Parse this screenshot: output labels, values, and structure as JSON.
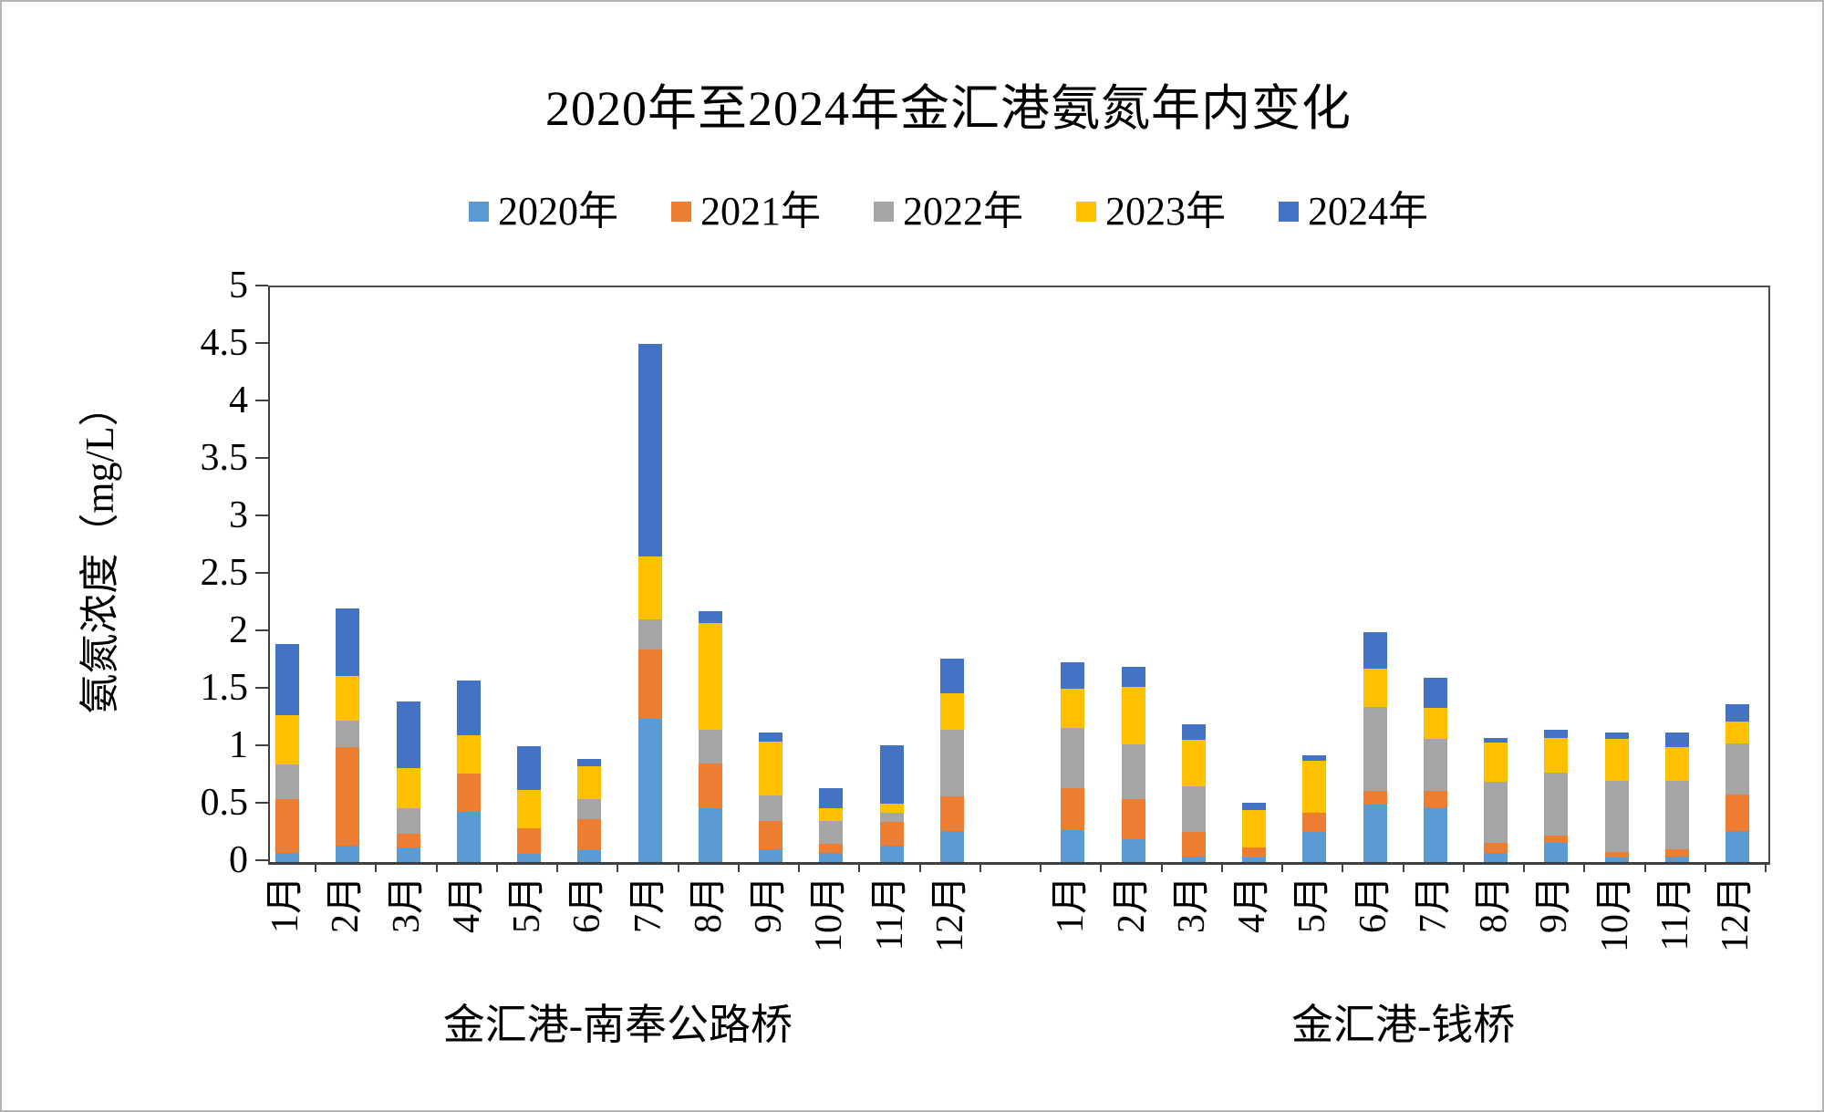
{
  "title": "2020年至2024年金汇港氨氮年内变化",
  "legend": [
    {
      "label": "2020年",
      "color": "#5B9BD5"
    },
    {
      "label": "2021年",
      "color": "#ED7D31"
    },
    {
      "label": "2022年",
      "color": "#A5A5A5"
    },
    {
      "label": "2023年",
      "color": "#FFC000"
    },
    {
      "label": "2024年",
      "color": "#4472C4"
    }
  ],
  "y_axis": {
    "title": "氨氮浓度（mg/L）",
    "min": 0,
    "max": 5,
    "step": 0.5,
    "tick_labels": [
      "0",
      "0.5",
      "1",
      "1.5",
      "2",
      "2.5",
      "3",
      "3.5",
      "4",
      "4.5",
      "5"
    ]
  },
  "chart_data": {
    "type": "bar",
    "stacked": true,
    "title": "2020年至2024年金汇港氨氮年内变化",
    "ylabel": "氨氮浓度（mg/L）",
    "ylim": [
      0,
      5
    ],
    "grid": false,
    "legend_position": "top",
    "unit": "mg/L",
    "groups": [
      {
        "label": "金汇港-南奉公路桥",
        "categories": [
          "1月",
          "2月",
          "3月",
          "4月",
          "5月",
          "6月",
          "7月",
          "8月",
          "9月",
          "10月",
          "11月",
          "12月"
        ],
        "series": [
          {
            "name": "2020年",
            "values": [
              0.08,
              0.14,
              0.13,
              0.44,
              0.07,
              0.1,
              1.25,
              0.47,
              0.11,
              0.08,
              0.14,
              0.27
            ]
          },
          {
            "name": "2021年",
            "values": [
              0.47,
              0.86,
              0.12,
              0.33,
              0.22,
              0.27,
              0.6,
              0.39,
              0.25,
              0.08,
              0.21,
              0.3
            ]
          },
          {
            "name": "2022年",
            "values": [
              0.3,
              0.23,
              0.22,
              0.0,
              0.0,
              0.18,
              0.26,
              0.29,
              0.22,
              0.2,
              0.08,
              0.58
            ]
          },
          {
            "name": "2023年",
            "values": [
              0.43,
              0.39,
              0.35,
              0.33,
              0.34,
              0.28,
              0.55,
              0.93,
              0.47,
              0.11,
              0.08,
              0.32
            ]
          },
          {
            "name": "2024年",
            "values": [
              0.62,
              0.59,
              0.58,
              0.48,
              0.38,
              0.07,
              1.85,
              0.1,
              0.08,
              0.17,
              0.51,
              0.3
            ]
          }
        ]
      },
      {
        "label": "金汇港-钱桥",
        "categories": [
          "1月",
          "2月",
          "3月",
          "4月",
          "5月",
          "6月",
          "7月",
          "8月",
          "9月",
          "10月",
          "11月",
          "12月"
        ],
        "series": [
          {
            "name": "2020年",
            "values": [
              0.28,
              0.2,
              0.05,
              0.04,
              0.26,
              0.5,
              0.48,
              0.08,
              0.17,
              0.04,
              0.05,
              0.27
            ]
          },
          {
            "name": "2021年",
            "values": [
              0.36,
              0.35,
              0.21,
              0.09,
              0.17,
              0.12,
              0.14,
              0.09,
              0.06,
              0.05,
              0.06,
              0.32
            ]
          },
          {
            "name": "2022年",
            "values": [
              0.53,
              0.47,
              0.4,
              0.0,
              0.0,
              0.73,
              0.45,
              0.53,
              0.55,
              0.62,
              0.6,
              0.44
            ]
          },
          {
            "name": "2023年",
            "values": [
              0.34,
              0.5,
              0.4,
              0.32,
              0.45,
              0.33,
              0.27,
              0.34,
              0.3,
              0.36,
              0.29,
              0.19
            ]
          },
          {
            "name": "2024年",
            "values": [
              0.23,
              0.18,
              0.14,
              0.07,
              0.05,
              0.32,
              0.26,
              0.04,
              0.07,
              0.06,
              0.13,
              0.15
            ]
          }
        ]
      }
    ]
  }
}
